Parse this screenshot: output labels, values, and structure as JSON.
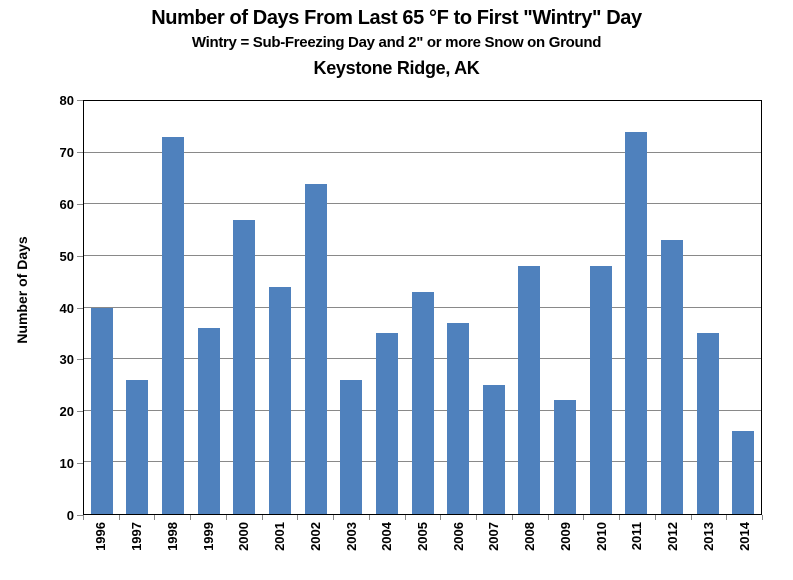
{
  "chart_data": {
    "type": "bar",
    "title": "Number of Days From Last 65 °F to First \"Wintry\" Day",
    "subtitle": "Wintry = Sub-Freezing Day and 2\" or more Snow on Ground",
    "location": "Keystone Ridge, AK",
    "xlabel": "",
    "ylabel": "Number of Days",
    "ylim": [
      0,
      80
    ],
    "ytick_step": 10,
    "grid": true,
    "legend": "none",
    "bar_color": "#4F81BD",
    "gridline_color": "#898989",
    "axis_border_color": "#000000",
    "tick_color": "#898989",
    "text_color": "#000000",
    "background_color": "#ffffff",
    "categories": [
      "1996",
      "1997",
      "1998",
      "1999",
      "2000",
      "2001",
      "2002",
      "2003",
      "2004",
      "2005",
      "2006",
      "2007",
      "2008",
      "2009",
      "2010",
      "2011",
      "2012",
      "2013",
      "2014"
    ],
    "values": [
      40,
      26,
      73,
      36,
      57,
      44,
      64,
      26,
      35,
      43,
      37,
      25,
      48,
      22,
      48,
      74,
      53,
      35,
      16
    ]
  }
}
